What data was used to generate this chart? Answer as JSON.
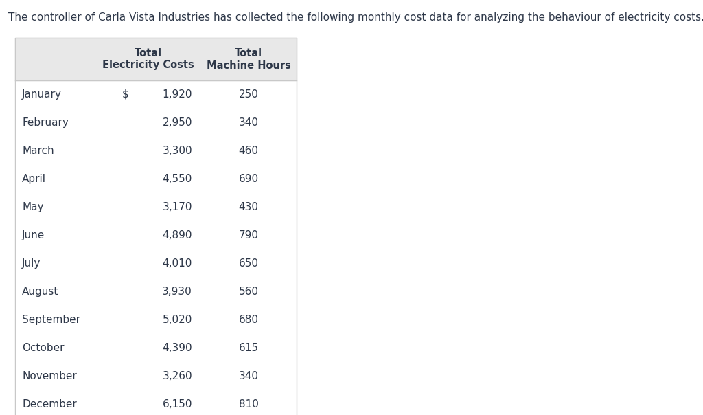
{
  "title": "The controller of Carla Vista Industries has collected the following monthly cost data for analyzing the behaviour of electricity costs.",
  "col_headers_line1": [
    "",
    "Total",
    "Total"
  ],
  "col_headers_line2": [
    "",
    "Electricity Costs",
    "Machine Hours"
  ],
  "months": [
    "January",
    "February",
    "March",
    "April",
    "May",
    "June",
    "July",
    "August",
    "September",
    "October",
    "November",
    "December"
  ],
  "electricity_costs_dollar": [
    "$",
    "",
    "",
    "",
    "",
    "",
    "",
    "",
    "",
    "",
    "",
    ""
  ],
  "electricity_costs": [
    "1,920",
    "2,950",
    "3,300",
    "4,550",
    "3,170",
    "4,890",
    "4,010",
    "3,930",
    "5,020",
    "4,390",
    "3,260",
    "6,150"
  ],
  "machine_hours": [
    "250",
    "340",
    "460",
    "690",
    "430",
    "790",
    "650",
    "560",
    "680",
    "615",
    "340",
    "810"
  ],
  "header_bg": "#e8e8e8",
  "table_border_color": "#c8c8c8",
  "text_color": "#2d3748",
  "title_fontsize": 11.0,
  "header_fontsize": 10.5,
  "cell_fontsize": 11.0,
  "background_color": "#ffffff"
}
